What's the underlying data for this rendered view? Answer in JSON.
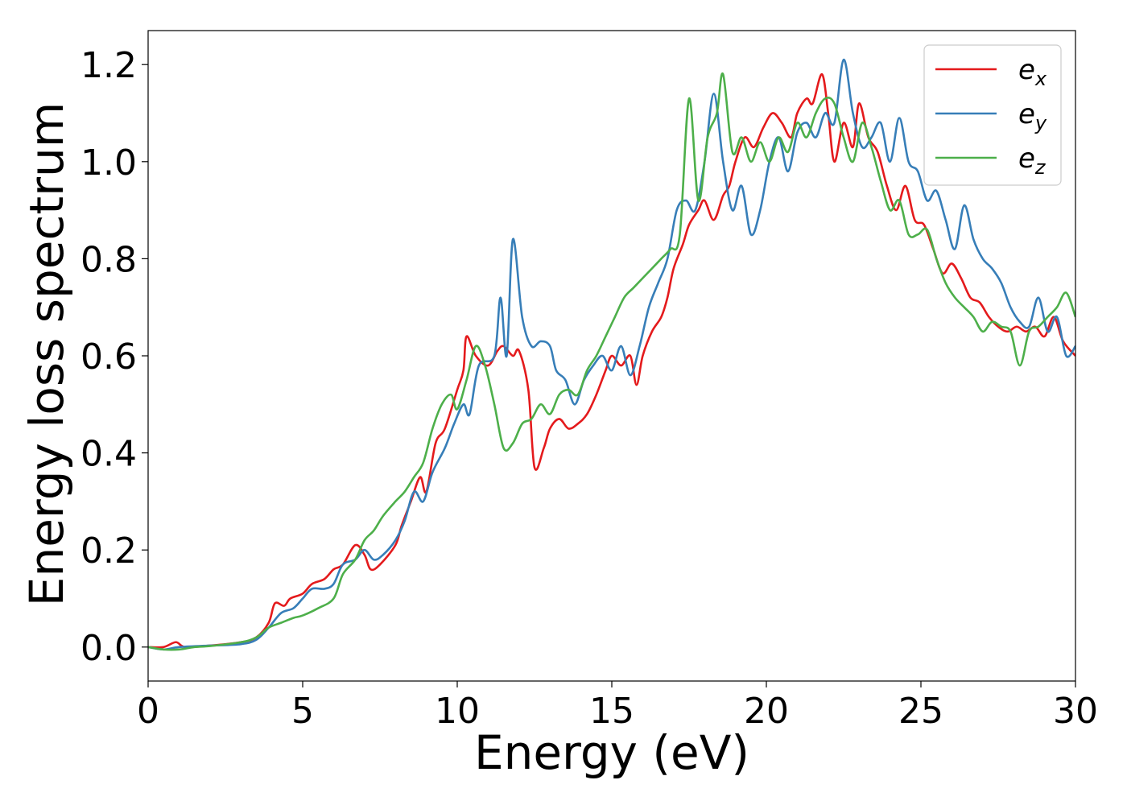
{
  "chart_data": {
    "type": "line",
    "title": "",
    "xlabel": "Energy (eV)",
    "ylabel": "Energy loss spectrum",
    "xlim": [
      0,
      30
    ],
    "ylim": [
      -0.07,
      1.27
    ],
    "xticks": [
      0,
      5,
      10,
      15,
      20,
      25,
      30
    ],
    "xtick_labels": [
      "0",
      "5",
      "10",
      "15",
      "20",
      "25",
      "30"
    ],
    "yticks": [
      0.0,
      0.2,
      0.4,
      0.6,
      0.8,
      1.0,
      1.2
    ],
    "ytick_labels": [
      "0.0",
      "0.2",
      "0.4",
      "0.6",
      "0.8",
      "1.0",
      "1.2"
    ],
    "grid": false,
    "legend": {
      "position": "top-right",
      "entries": [
        {
          "base": "e",
          "sub": "x",
          "color": "#e41a1c"
        },
        {
          "base": "e",
          "sub": "y",
          "color": "#377eb8"
        },
        {
          "base": "e",
          "sub": "z",
          "color": "#4daf4a"
        }
      ]
    },
    "series": [
      {
        "name": "e_x",
        "color": "#e41a1c",
        "points": [
          [
            0,
            0
          ],
          [
            0.5,
            0
          ],
          [
            0.9,
            0.01
          ],
          [
            1.2,
            0
          ],
          [
            2,
            0.003
          ],
          [
            3,
            0.01
          ],
          [
            3.5,
            0.02
          ],
          [
            3.9,
            0.05
          ],
          [
            4.1,
            0.09
          ],
          [
            4.4,
            0.085
          ],
          [
            4.6,
            0.1
          ],
          [
            5,
            0.11
          ],
          [
            5.3,
            0.13
          ],
          [
            5.7,
            0.14
          ],
          [
            6,
            0.16
          ],
          [
            6.3,
            0.17
          ],
          [
            6.7,
            0.21
          ],
          [
            7,
            0.19
          ],
          [
            7.2,
            0.16
          ],
          [
            7.5,
            0.17
          ],
          [
            8,
            0.21
          ],
          [
            8.2,
            0.25
          ],
          [
            8.5,
            0.3
          ],
          [
            8.8,
            0.35
          ],
          [
            9,
            0.32
          ],
          [
            9.3,
            0.42
          ],
          [
            9.6,
            0.45
          ],
          [
            10,
            0.53
          ],
          [
            10.2,
            0.57
          ],
          [
            10.3,
            0.64
          ],
          [
            10.6,
            0.6
          ],
          [
            11,
            0.58
          ],
          [
            11.3,
            0.61
          ],
          [
            11.5,
            0.62
          ],
          [
            11.8,
            0.6
          ],
          [
            12,
            0.61
          ],
          [
            12.3,
            0.53
          ],
          [
            12.5,
            0.37
          ],
          [
            12.8,
            0.41
          ],
          [
            13,
            0.45
          ],
          [
            13.3,
            0.47
          ],
          [
            13.6,
            0.45
          ],
          [
            13.9,
            0.46
          ],
          [
            14.2,
            0.48
          ],
          [
            14.5,
            0.52
          ],
          [
            14.8,
            0.57
          ],
          [
            15,
            0.6
          ],
          [
            15.3,
            0.58
          ],
          [
            15.6,
            0.6
          ],
          [
            15.8,
            0.54
          ],
          [
            16,
            0.6
          ],
          [
            16.3,
            0.65
          ],
          [
            16.6,
            0.68
          ],
          [
            16.8,
            0.72
          ],
          [
            17,
            0.78
          ],
          [
            17.3,
            0.83
          ],
          [
            17.5,
            0.87
          ],
          [
            17.8,
            0.9
          ],
          [
            18,
            0.92
          ],
          [
            18.3,
            0.88
          ],
          [
            18.6,
            0.93
          ],
          [
            18.8,
            0.95
          ],
          [
            19,
            1.0
          ],
          [
            19.3,
            1.05
          ],
          [
            19.6,
            1.03
          ],
          [
            19.9,
            1.07
          ],
          [
            20.2,
            1.1
          ],
          [
            20.5,
            1.08
          ],
          [
            20.8,
            1.05
          ],
          [
            21,
            1.1
          ],
          [
            21.3,
            1.13
          ],
          [
            21.5,
            1.12
          ],
          [
            21.8,
            1.18
          ],
          [
            22,
            1.1
          ],
          [
            22.2,
            1.0
          ],
          [
            22.5,
            1.08
          ],
          [
            22.8,
            1.03
          ],
          [
            23,
            1.12
          ],
          [
            23.3,
            1.05
          ],
          [
            23.6,
            1.02
          ],
          [
            23.9,
            0.95
          ],
          [
            24.2,
            0.9
          ],
          [
            24.5,
            0.95
          ],
          [
            24.8,
            0.88
          ],
          [
            25.1,
            0.87
          ],
          [
            25.4,
            0.82
          ],
          [
            25.7,
            0.77
          ],
          [
            26,
            0.79
          ],
          [
            26.3,
            0.76
          ],
          [
            26.6,
            0.72
          ],
          [
            26.9,
            0.71
          ],
          [
            27.2,
            0.68
          ],
          [
            27.5,
            0.66
          ],
          [
            27.8,
            0.65
          ],
          [
            28.1,
            0.66
          ],
          [
            28.4,
            0.65
          ],
          [
            28.7,
            0.66
          ],
          [
            29,
            0.64
          ],
          [
            29.3,
            0.68
          ],
          [
            29.6,
            0.63
          ],
          [
            30,
            0.6
          ]
        ]
      },
      {
        "name": "e_y",
        "color": "#377eb8",
        "points": [
          [
            0,
            0
          ],
          [
            0.5,
            -0.005
          ],
          [
            1,
            0
          ],
          [
            2,
            0.003
          ],
          [
            3,
            0.006
          ],
          [
            3.5,
            0.015
          ],
          [
            3.9,
            0.04
          ],
          [
            4.3,
            0.07
          ],
          [
            4.7,
            0.08
          ],
          [
            5,
            0.1
          ],
          [
            5.3,
            0.12
          ],
          [
            5.7,
            0.12
          ],
          [
            6,
            0.13
          ],
          [
            6.3,
            0.17
          ],
          [
            6.7,
            0.18
          ],
          [
            7,
            0.2
          ],
          [
            7.3,
            0.18
          ],
          [
            7.6,
            0.19
          ],
          [
            8,
            0.22
          ],
          [
            8.3,
            0.26
          ],
          [
            8.6,
            0.32
          ],
          [
            8.9,
            0.3
          ],
          [
            9.2,
            0.36
          ],
          [
            9.6,
            0.41
          ],
          [
            9.9,
            0.46
          ],
          [
            10.2,
            0.5
          ],
          [
            10.4,
            0.48
          ],
          [
            10.7,
            0.58
          ],
          [
            11.2,
            0.6
          ],
          [
            11.4,
            0.72
          ],
          [
            11.6,
            0.6
          ],
          [
            11.8,
            0.84
          ],
          [
            12.1,
            0.68
          ],
          [
            12.4,
            0.62
          ],
          [
            12.7,
            0.63
          ],
          [
            13,
            0.62
          ],
          [
            13.2,
            0.57
          ],
          [
            13.5,
            0.55
          ],
          [
            13.8,
            0.5
          ],
          [
            14.1,
            0.55
          ],
          [
            14.4,
            0.58
          ],
          [
            14.7,
            0.6
          ],
          [
            15,
            0.57
          ],
          [
            15.3,
            0.62
          ],
          [
            15.6,
            0.56
          ],
          [
            15.9,
            0.62
          ],
          [
            16.2,
            0.7
          ],
          [
            16.5,
            0.75
          ],
          [
            16.8,
            0.8
          ],
          [
            17.1,
            0.9
          ],
          [
            17.4,
            0.92
          ],
          [
            17.7,
            0.9
          ],
          [
            18,
            1.0
          ],
          [
            18.3,
            1.14
          ],
          [
            18.6,
            1.0
          ],
          [
            18.9,
            0.9
          ],
          [
            19.2,
            0.95
          ],
          [
            19.5,
            0.85
          ],
          [
            19.8,
            0.9
          ],
          [
            20.1,
            1.0
          ],
          [
            20.4,
            1.05
          ],
          [
            20.7,
            0.98
          ],
          [
            21,
            1.06
          ],
          [
            21.3,
            1.08
          ],
          [
            21.6,
            1.05
          ],
          [
            21.9,
            1.1
          ],
          [
            22.2,
            1.08
          ],
          [
            22.5,
            1.21
          ],
          [
            22.8,
            1.1
          ],
          [
            23.1,
            1.03
          ],
          [
            23.4,
            1.05
          ],
          [
            23.7,
            1.08
          ],
          [
            24,
            1.0
          ],
          [
            24.3,
            1.09
          ],
          [
            24.6,
            1.0
          ],
          [
            24.9,
            0.98
          ],
          [
            25.2,
            0.92
          ],
          [
            25.5,
            0.94
          ],
          [
            25.8,
            0.88
          ],
          [
            26.1,
            0.82
          ],
          [
            26.4,
            0.91
          ],
          [
            26.7,
            0.84
          ],
          [
            27,
            0.8
          ],
          [
            27.3,
            0.78
          ],
          [
            27.6,
            0.75
          ],
          [
            27.9,
            0.7
          ],
          [
            28.2,
            0.67
          ],
          [
            28.5,
            0.66
          ],
          [
            28.8,
            0.72
          ],
          [
            29.1,
            0.65
          ],
          [
            29.4,
            0.68
          ],
          [
            29.7,
            0.6
          ],
          [
            30,
            0.62
          ]
        ]
      },
      {
        "name": "e_z",
        "color": "#4daf4a",
        "points": [
          [
            0,
            0
          ],
          [
            0.5,
            -0.005
          ],
          [
            1,
            -0.005
          ],
          [
            1.5,
            0
          ],
          [
            2,
            0.002
          ],
          [
            3,
            0.01
          ],
          [
            3.5,
            0.02
          ],
          [
            3.9,
            0.04
          ],
          [
            4.3,
            0.05
          ],
          [
            4.7,
            0.06
          ],
          [
            5,
            0.065
          ],
          [
            5.5,
            0.08
          ],
          [
            6,
            0.1
          ],
          [
            6.3,
            0.15
          ],
          [
            6.7,
            0.18
          ],
          [
            7,
            0.22
          ],
          [
            7.3,
            0.24
          ],
          [
            7.6,
            0.27
          ],
          [
            8,
            0.3
          ],
          [
            8.3,
            0.32
          ],
          [
            8.6,
            0.35
          ],
          [
            8.9,
            0.38
          ],
          [
            9.2,
            0.45
          ],
          [
            9.5,
            0.5
          ],
          [
            9.8,
            0.52
          ],
          [
            10,
            0.49
          ],
          [
            10.3,
            0.55
          ],
          [
            10.6,
            0.62
          ],
          [
            10.9,
            0.58
          ],
          [
            11.2,
            0.5
          ],
          [
            11.5,
            0.41
          ],
          [
            11.8,
            0.42
          ],
          [
            12.1,
            0.46
          ],
          [
            12.4,
            0.47
          ],
          [
            12.7,
            0.5
          ],
          [
            13,
            0.48
          ],
          [
            13.3,
            0.52
          ],
          [
            13.6,
            0.53
          ],
          [
            13.9,
            0.52
          ],
          [
            14.2,
            0.57
          ],
          [
            14.5,
            0.6
          ],
          [
            14.8,
            0.64
          ],
          [
            15.1,
            0.68
          ],
          [
            15.4,
            0.72
          ],
          [
            15.7,
            0.74
          ],
          [
            16,
            0.76
          ],
          [
            16.3,
            0.78
          ],
          [
            16.6,
            0.8
          ],
          [
            16.9,
            0.82
          ],
          [
            17.2,
            0.85
          ],
          [
            17.5,
            1.13
          ],
          [
            17.8,
            0.92
          ],
          [
            18.1,
            1.05
          ],
          [
            18.4,
            1.1
          ],
          [
            18.6,
            1.18
          ],
          [
            18.9,
            1.02
          ],
          [
            19.2,
            1.05
          ],
          [
            19.5,
            1.0
          ],
          [
            19.8,
            1.04
          ],
          [
            20.1,
            1.0
          ],
          [
            20.4,
            1.05
          ],
          [
            20.7,
            1.02
          ],
          [
            21,
            1.08
          ],
          [
            21.3,
            1.05
          ],
          [
            21.6,
            1.1
          ],
          [
            21.9,
            1.13
          ],
          [
            22.2,
            1.12
          ],
          [
            22.5,
            1.05
          ],
          [
            22.8,
            1.0
          ],
          [
            23.1,
            1.08
          ],
          [
            23.4,
            1.03
          ],
          [
            23.7,
            0.96
          ],
          [
            24,
            0.9
          ],
          [
            24.3,
            0.92
          ],
          [
            24.6,
            0.85
          ],
          [
            24.9,
            0.85
          ],
          [
            25.2,
            0.86
          ],
          [
            25.5,
            0.8
          ],
          [
            25.8,
            0.75
          ],
          [
            26.1,
            0.72
          ],
          [
            26.4,
            0.7
          ],
          [
            26.7,
            0.68
          ],
          [
            27,
            0.65
          ],
          [
            27.3,
            0.67
          ],
          [
            27.6,
            0.66
          ],
          [
            27.9,
            0.65
          ],
          [
            28.2,
            0.58
          ],
          [
            28.5,
            0.65
          ],
          [
            28.8,
            0.66
          ],
          [
            29.1,
            0.68
          ],
          [
            29.4,
            0.7
          ],
          [
            29.7,
            0.73
          ],
          [
            30,
            0.68
          ]
        ]
      }
    ]
  }
}
